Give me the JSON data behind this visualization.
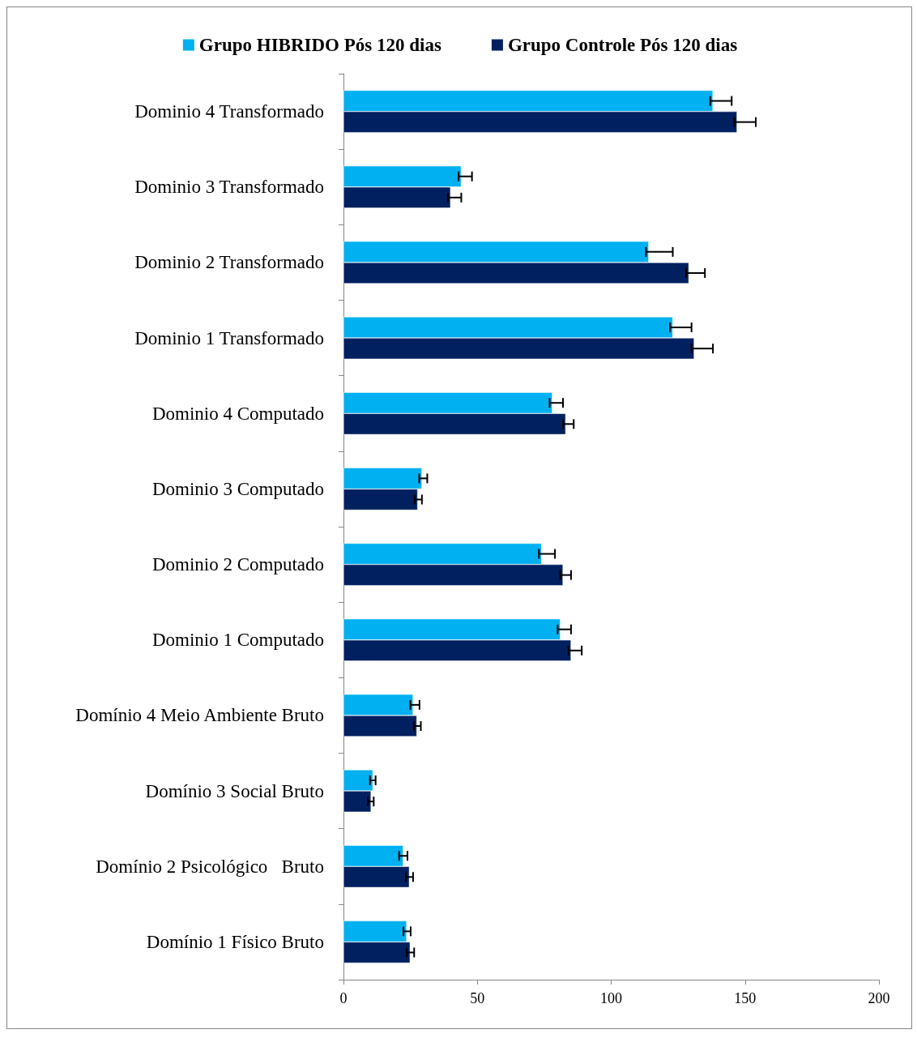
{
  "chart_data": {
    "type": "bar",
    "orientation": "horizontal",
    "categories": [
      "Dominio 4 Transformado",
      "Dominio 3 Transformado",
      "Dominio 2 Transformado",
      "Dominio 1 Transformado",
      "Dominio 4 Computado",
      "Dominio 3 Computado",
      "Dominio 2 Computado",
      "Dominio 1 Computado",
      "Domínio 4 Meio Ambiente Bruto",
      "Domínio 3 Social Bruto",
      "Domínio 2 Psicológico   Bruto",
      "Domínio 1 Físico Bruto"
    ],
    "series": [
      {
        "name": "Grupo HIBRIDO Pós 120 dias",
        "color": "#00b0f0",
        "values": [
          138,
          44,
          114,
          123,
          78,
          29.3,
          74,
          81,
          26,
          11,
          22.3,
          23.6
        ],
        "errors": [
          [
            137,
            145
          ],
          [
            43,
            48
          ],
          [
            113,
            123
          ],
          [
            122,
            130
          ],
          [
            77,
            82
          ],
          [
            28.3,
            31.3
          ],
          [
            73,
            79
          ],
          [
            80,
            85
          ],
          [
            25,
            28.4
          ],
          [
            9.9,
            12
          ],
          [
            20.8,
            23.9
          ],
          [
            22.4,
            25.1
          ]
        ]
      },
      {
        "name": "Grupo Controle Pós 120 dias",
        "color": "#002060",
        "values": [
          147,
          40,
          129,
          131,
          83,
          27.7,
          82,
          85,
          27.4,
          10.3,
          24.6,
          24.9
        ],
        "errors": [
          [
            146,
            154
          ],
          [
            39,
            44
          ],
          [
            128,
            135
          ],
          [
            130,
            138
          ],
          [
            82,
            86
          ],
          [
            26.6,
            29.3
          ],
          [
            81,
            85
          ],
          [
            84,
            89
          ],
          [
            26.3,
            28.9
          ],
          [
            9.1,
            11.3
          ],
          [
            23.3,
            26
          ],
          [
            23.6,
            26.4
          ]
        ]
      }
    ],
    "xlim": [
      0,
      200
    ],
    "xticks": [
      0,
      50,
      100,
      150,
      200
    ],
    "grid": false,
    "legend": "top"
  }
}
